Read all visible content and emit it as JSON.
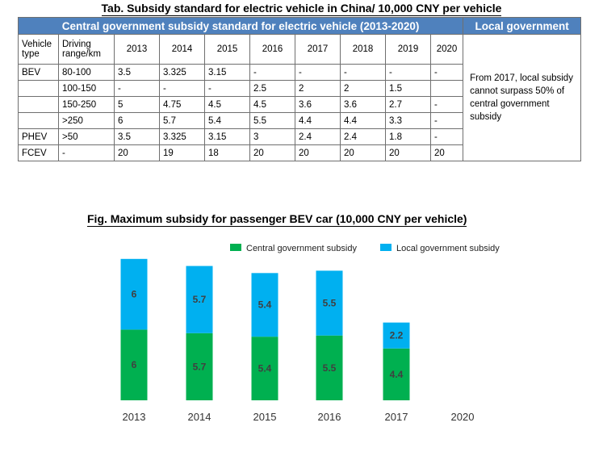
{
  "table": {
    "title": "Tab. Subsidy standard for electric vehicle in China/ 10,000 CNY per vehicle",
    "header_central": "Central government subsidy standard for electric vehicle (2013-2020)",
    "header_local": "Local government",
    "col_vehicle": "Vehicle type",
    "col_range": "Driving range/km",
    "years": [
      "2013",
      "2014",
      "2015",
      "2016",
      "2017",
      "2018",
      "2019",
      "2020"
    ],
    "rows": [
      {
        "type": "BEV",
        "range": "80-100",
        "values": [
          "3.5",
          "3.325",
          "3.15",
          "-",
          "-",
          "-",
          "-",
          "-"
        ]
      },
      {
        "type": "",
        "range": "100-150",
        "values": [
          "-",
          "-",
          "-",
          "2.5",
          "2",
          "2",
          "1.5",
          ""
        ]
      },
      {
        "type": "",
        "range": "150-250",
        "values": [
          "5",
          "4.75",
          "4.5",
          "4.5",
          "3.6",
          "3.6",
          "2.7",
          "-"
        ]
      },
      {
        "type": "",
        "range": ">250",
        "values": [
          "6",
          "5.7",
          "5.4",
          "5.5",
          "4.4",
          "4.4",
          "3.3",
          "-"
        ]
      },
      {
        "type": "PHEV",
        "range": ">50",
        "values": [
          "3.5",
          "3.325",
          "3.15",
          "3",
          "2.4",
          "2.4",
          "1.8",
          "-"
        ]
      },
      {
        "type": "FCEV",
        "range": "-",
        "values": [
          "20",
          "19",
          "18",
          "20",
          "20",
          "20",
          "20",
          "20"
        ]
      }
    ],
    "local_note": "From 2017, local subsidy cannot surpass 50% of central government subsidy"
  },
  "figure": {
    "title": "Fig. Maximum subsidy for passenger BEV car (10,000 CNY per vehicle)"
  },
  "chart_data": {
    "type": "bar",
    "stacked": true,
    "title": "Fig. Maximum subsidy for passenger BEV car (10,000 CNY per vehicle)",
    "categories": [
      "2013",
      "2014",
      "2015",
      "2016",
      "2017",
      "2020"
    ],
    "series": [
      {
        "name": "Central government subsidy",
        "color": "#00b050",
        "values": [
          6,
          5.7,
          5.4,
          5.5,
          4.4,
          0
        ],
        "labels": [
          "6",
          "5.7",
          "5.4",
          "5.5",
          "4.4",
          ""
        ]
      },
      {
        "name": "Local government subsidy",
        "color": "#00b0f0",
        "values": [
          6,
          5.7,
          5.4,
          5.5,
          2.2,
          0
        ],
        "labels": [
          "6",
          "5.7",
          "5.4",
          "5.5",
          "2.2",
          ""
        ]
      }
    ],
    "legend_position": "top",
    "grid": false
  }
}
